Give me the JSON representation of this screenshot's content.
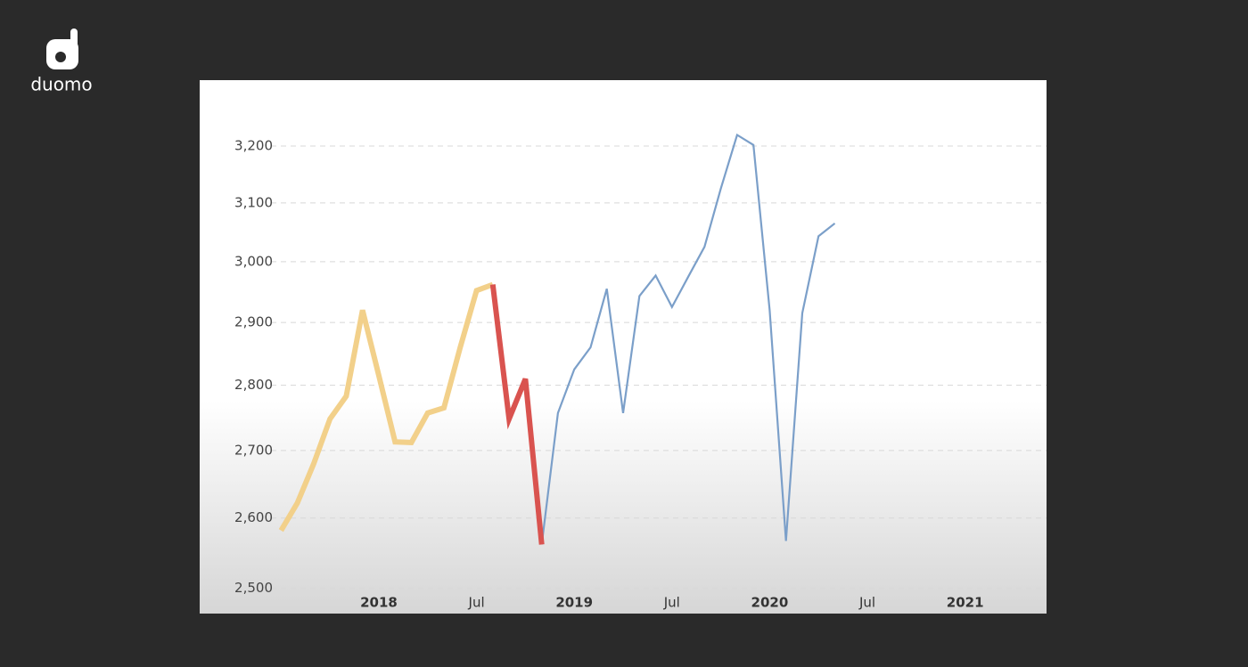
{
  "brand": "duomo",
  "chart_data": {
    "type": "line",
    "x": [
      "2017-07",
      "2017-08",
      "2017-09",
      "2017-10",
      "2017-11",
      "2017-12",
      "2018-01",
      "2018-02",
      "2018-03",
      "2018-04",
      "2018-05",
      "2018-06",
      "2018-07",
      "2018-08",
      "2018-09",
      "2018-10",
      "2018-11",
      "2018-12",
      "2019-01",
      "2019-02",
      "2019-03",
      "2019-04",
      "2019-05",
      "2019-06",
      "2019-07",
      "2019-08",
      "2019-09",
      "2019-10",
      "2019-11",
      "2019-12",
      "2020-01",
      "2020-02",
      "2020-03",
      "2020-04",
      "2020-05"
    ],
    "series": [
      {
        "color": "#f2d08a",
        "values": [
          2582,
          2622,
          2680,
          2748,
          2783,
          2920,
          2815,
          2713,
          2712,
          2757,
          2765,
          2860,
          2952,
          2962,
          null,
          null,
          null,
          null,
          null,
          null,
          null,
          null,
          null,
          null,
          null,
          null,
          null,
          null,
          null,
          null,
          null,
          null,
          null,
          null,
          null
        ]
      },
      {
        "color": "#d9534f",
        "values": [
          null,
          null,
          null,
          null,
          null,
          null,
          null,
          null,
          null,
          null,
          null,
          null,
          null,
          2962,
          2748,
          2810,
          2562,
          null,
          null,
          null,
          null,
          null,
          null,
          null,
          null,
          null,
          null,
          null,
          null,
          null,
          null,
          null,
          null,
          null,
          null
        ]
      },
      {
        "color": "#7b9fc9",
        "values": [
          null,
          null,
          null,
          null,
          null,
          null,
          null,
          null,
          null,
          null,
          null,
          null,
          null,
          null,
          null,
          null,
          2562,
          2757,
          2825,
          2860,
          2955,
          2757,
          2943,
          2977,
          2925,
          2975,
          3025,
          3125,
          3220,
          3202,
          2920,
          2567,
          2915,
          3043,
          3065
        ]
      }
    ],
    "ylim": [
      2465,
      3320
    ],
    "log_scale": true,
    "grid": true,
    "yticks": [
      {
        "value": 2500,
        "label": "2,500"
      },
      {
        "value": 2600,
        "label": "2,600"
      },
      {
        "value": 2700,
        "label": "2,700"
      },
      {
        "value": 2800,
        "label": "2,800"
      },
      {
        "value": 2900,
        "label": "2,900"
      },
      {
        "value": 3000,
        "label": "3,000"
      },
      {
        "value": 3100,
        "label": "3,100"
      },
      {
        "value": 3200,
        "label": "3,200"
      }
    ],
    "xlim": [
      "2017-02",
      "2021-06"
    ],
    "xticks": [
      {
        "value": "2018-01",
        "label": "2018"
      },
      {
        "value": "2018-07",
        "label": "Jul"
      },
      {
        "value": "2019-01",
        "label": "2019"
      },
      {
        "value": "2019-07",
        "label": "Jul"
      },
      {
        "value": "2020-01",
        "label": "2020"
      },
      {
        "value": "2020-07",
        "label": "Jul"
      },
      {
        "value": "2021-01",
        "label": "2021"
      }
    ]
  }
}
